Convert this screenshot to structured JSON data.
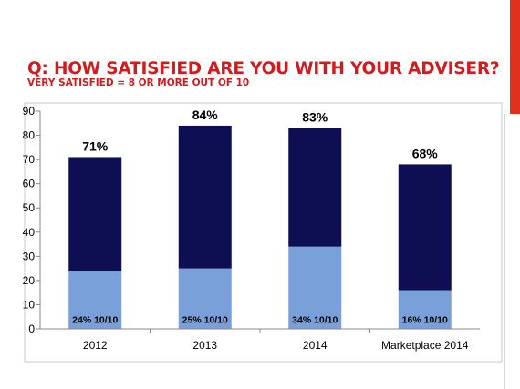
{
  "slide": {
    "title_line1": "Q: HOW SATISFIED ARE YOU WITH YOUR ADVISER?",
    "title_line2": "VERY SATISFIED = 8 OR MORE OUT OF 10",
    "title_color": "#d01c1f",
    "accent_color": "#e0301e"
  },
  "chart_data": {
    "type": "bar",
    "stacked": true,
    "categories": [
      "2012",
      "2013",
      "2014",
      "Marketplace 2014"
    ],
    "series": [
      {
        "key": "ten",
        "values": [
          24,
          25,
          34,
          16
        ],
        "color": "#7aa0da",
        "labels": [
          "24% 10/10",
          "25% 10/10",
          "34% 10/10",
          "16% 10/10"
        ]
      },
      {
        "key": "rest",
        "values": [
          47,
          59,
          49,
          52
        ],
        "color": "#0d0f52"
      }
    ],
    "totals": [
      71,
      84,
      83,
      68
    ],
    "total_labels": [
      "71%",
      "84%",
      "83%",
      "68%"
    ],
    "ylim": [
      0,
      90
    ],
    "yticks": [
      0,
      10,
      20,
      30,
      40,
      50,
      60,
      70,
      80,
      90
    ],
    "grid": false,
    "legend": "none"
  }
}
